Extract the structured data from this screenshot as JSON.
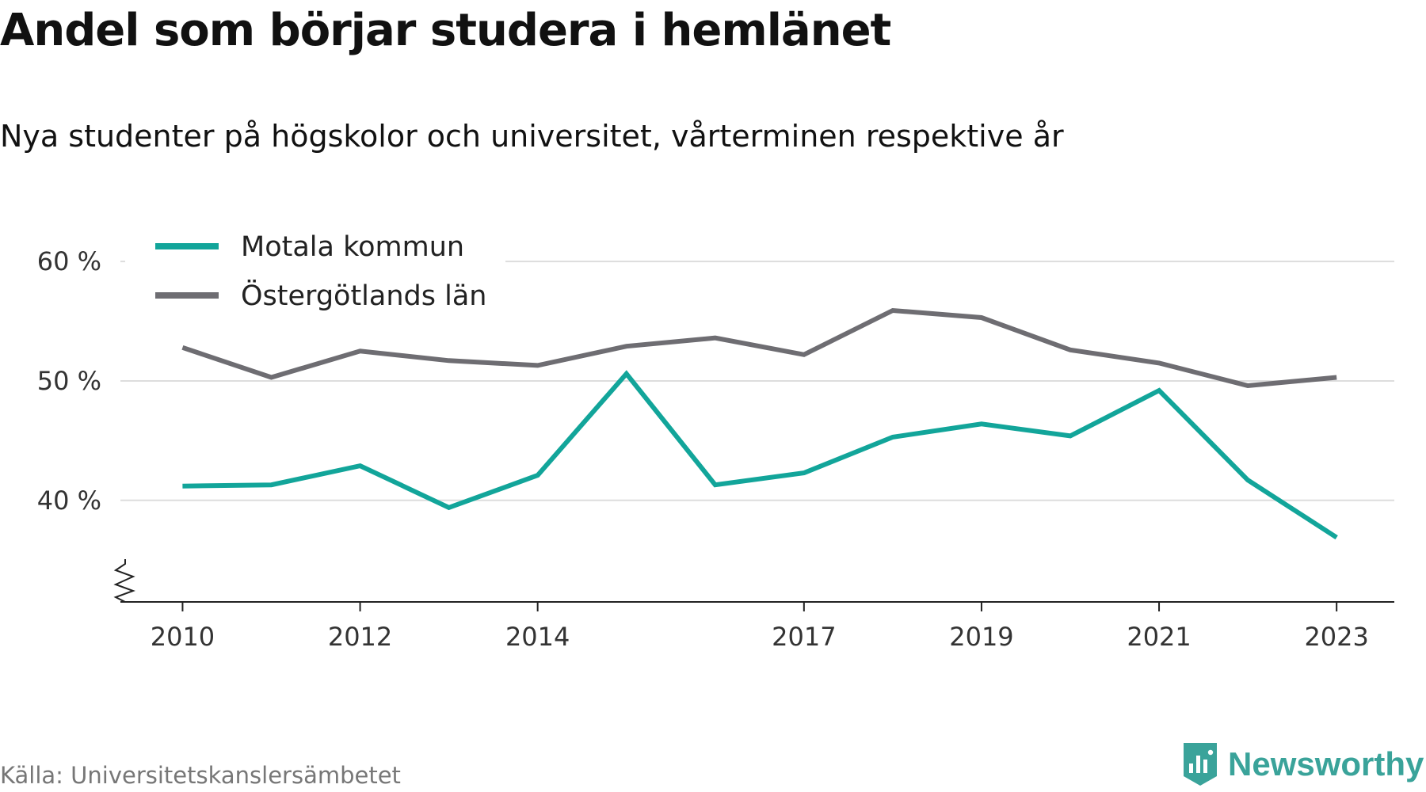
{
  "title": "Andel som börjar studera i hemlänet",
  "subtitle": "Nya studenter på högskolor och universitet, vårterminen respektive år",
  "source": "Källa: Universitetskanslersämbetet",
  "brand": {
    "name": "Newsworthy",
    "icon": "newsworthy-logo-icon",
    "color": "#3aa39a"
  },
  "chart_data": {
    "type": "line",
    "x": [
      2010,
      2011,
      2012,
      2013,
      2014,
      2015,
      2016,
      2017,
      2018,
      2019,
      2020,
      2021,
      2022,
      2023
    ],
    "x_tick_values": [
      2010,
      2012,
      2014,
      2017,
      2019,
      2021,
      2023
    ],
    "x_tick_labels": [
      "2010",
      "2012",
      "2014",
      "2017",
      "2019",
      "2021",
      "2023"
    ],
    "y_tick_values": [
      40,
      50,
      60
    ],
    "y_tick_labels": [
      "40 %",
      "50 %",
      "60 %"
    ],
    "ylim": [
      31.5,
      62
    ],
    "xlim": [
      2009.3,
      2023.65
    ],
    "grid": true,
    "y_axis_break": true,
    "legend_position": "top-left",
    "series": [
      {
        "name": "Motala kommun",
        "color": "#12a59a",
        "values": [
          41.2,
          41.3,
          42.9,
          39.4,
          42.1,
          50.6,
          41.3,
          42.3,
          45.3,
          46.4,
          45.4,
          49.2,
          41.7,
          36.9
        ]
      },
      {
        "name": "Östergötlands län",
        "color": "#6e6d72",
        "values": [
          52.8,
          50.3,
          52.5,
          51.7,
          51.3,
          52.9,
          53.6,
          52.2,
          55.9,
          55.3,
          52.6,
          51.5,
          49.6,
          50.3
        ]
      }
    ]
  }
}
